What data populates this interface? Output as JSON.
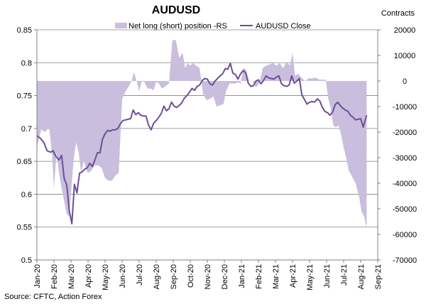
{
  "chart_data": {
    "type": "line",
    "title": "AUDUSD",
    "right_axis_title": "Contracts",
    "source": "Source: CFTC, Action Forex",
    "legend": {
      "placement": "top-center",
      "area_label": "Net long (short) position -RS",
      "line_label": "AUDUSD Close"
    },
    "colors": {
      "area": "#c9bedd",
      "line": "#6c4f96",
      "grid": "#808080",
      "axis": "#808080"
    },
    "x_start": "Jan-20",
    "x_end": "Sep-21",
    "x_tick_labels": [
      "Jan-20",
      "Feb-20",
      "Mar-20",
      "Apr-20",
      "May-20",
      "Jun-20",
      "Jul-20",
      "Aug-20",
      "Sep-20",
      "Oct-20",
      "Nov-20",
      "Dec-20",
      "Jan-21",
      "Feb-21",
      "Mar-21",
      "Apr-21",
      "May-21",
      "Jun-21",
      "Jul-21",
      "Aug-21",
      "Sep-21"
    ],
    "left_axis": {
      "range": [
        0.5,
        0.85
      ],
      "ticks": [
        0.85,
        0.8,
        0.75,
        0.7,
        0.65,
        0.6,
        0.55,
        0.5
      ]
    },
    "right_axis": {
      "range": [
        -70000,
        20000
      ],
      "ticks": [
        20000,
        10000,
        0,
        -10000,
        -20000,
        -30000,
        -40000,
        -50000,
        -60000,
        -70000
      ]
    },
    "series": [
      {
        "name": "Net long (short) position -RS",
        "type": "area",
        "axis": "right",
        "points": [
          [
            0.0,
            -26000
          ],
          [
            0.25,
            -19000
          ],
          [
            0.5,
            -20000
          ],
          [
            0.7,
            -18000
          ],
          [
            0.8,
            -23000
          ],
          [
            0.9,
            -30000
          ],
          [
            1.0,
            -42000
          ],
          [
            1.15,
            -28000
          ],
          [
            1.3,
            -36000
          ],
          [
            1.45,
            -42000
          ],
          [
            1.6,
            -47000
          ],
          [
            1.75,
            -52000
          ],
          [
            1.9,
            -53000
          ],
          [
            2.0,
            -44000
          ],
          [
            2.15,
            -31000
          ],
          [
            2.3,
            -24000
          ],
          [
            2.45,
            -28000
          ],
          [
            2.6,
            -36000
          ],
          [
            2.75,
            -31000
          ],
          [
            2.9,
            -35000
          ],
          [
            3.0,
            -36000
          ],
          [
            3.2,
            -35000
          ],
          [
            3.4,
            -33000
          ],
          [
            3.6,
            -33000
          ],
          [
            3.8,
            -34000
          ],
          [
            4.0,
            -38000
          ],
          [
            4.2,
            -39000
          ],
          [
            4.4,
            -39000
          ],
          [
            4.6,
            -37000
          ],
          [
            4.8,
            -36000
          ],
          [
            5.0,
            -7000
          ],
          [
            5.1,
            -5500
          ],
          [
            5.25,
            -3500
          ],
          [
            5.4,
            -2000
          ],
          [
            5.55,
            0
          ],
          [
            5.7,
            3500
          ],
          [
            5.85,
            0
          ],
          [
            6.0,
            -4000
          ],
          [
            6.15,
            -200
          ],
          [
            6.3,
            -300
          ],
          [
            6.5,
            -3000
          ],
          [
            6.7,
            -3000
          ],
          [
            6.85,
            -3700
          ],
          [
            7.0,
            -400
          ],
          [
            7.15,
            -1000
          ],
          [
            7.35,
            -3000
          ],
          [
            7.55,
            -2000
          ],
          [
            7.75,
            -1000
          ],
          [
            7.95,
            16000
          ],
          [
            8.15,
            16000
          ],
          [
            8.35,
            9000
          ],
          [
            8.55,
            11000
          ],
          [
            8.7,
            5000
          ],
          [
            8.85,
            7000
          ],
          [
            9.0,
            6000
          ],
          [
            9.15,
            7000
          ],
          [
            9.35,
            6000
          ],
          [
            9.55,
            5000
          ],
          [
            9.75,
            -5000
          ],
          [
            9.95,
            -7500
          ],
          [
            10.15,
            -7000
          ],
          [
            10.35,
            -6000
          ],
          [
            10.55,
            -10000
          ],
          [
            10.75,
            -9500
          ],
          [
            10.95,
            -9000
          ],
          [
            11.1,
            -4000
          ],
          [
            11.3,
            -1000
          ],
          [
            11.5,
            -1000
          ],
          [
            11.65,
            -1000
          ],
          [
            11.8,
            -500
          ],
          [
            11.95,
            -1000
          ],
          [
            12.1,
            5000
          ],
          [
            12.25,
            4700
          ],
          [
            12.45,
            0
          ],
          [
            12.65,
            100
          ],
          [
            12.85,
            -2500
          ],
          [
            13.05,
            -1000
          ],
          [
            13.25,
            5000
          ],
          [
            13.45,
            6000
          ],
          [
            13.65,
            6500
          ],
          [
            13.85,
            7000
          ],
          [
            14.05,
            6000
          ],
          [
            14.25,
            7000
          ],
          [
            14.45,
            5000
          ],
          [
            14.65,
            7500
          ],
          [
            14.85,
            6000
          ],
          [
            15.0,
            11000
          ],
          [
            15.15,
            2000
          ],
          [
            15.35,
            2800
          ],
          [
            15.55,
            1000
          ],
          [
            15.75,
            0
          ],
          [
            15.95,
            1000
          ],
          [
            16.15,
            1000
          ],
          [
            16.35,
            1300
          ],
          [
            16.6,
            500
          ],
          [
            16.8,
            500
          ],
          [
            16.95,
            500
          ],
          [
            17.1,
            -7000
          ],
          [
            17.25,
            -11000
          ],
          [
            17.4,
            -17500
          ],
          [
            17.55,
            -18000
          ],
          [
            17.7,
            -17500
          ],
          [
            17.85,
            -21000
          ],
          [
            18.0,
            -26000
          ],
          [
            18.15,
            -30000
          ],
          [
            18.3,
            -35000
          ],
          [
            18.5,
            -37500
          ],
          [
            18.7,
            -40000
          ],
          [
            18.9,
            -45000
          ],
          [
            19.05,
            -51000
          ],
          [
            19.2,
            -53000
          ],
          [
            19.35,
            -57500
          ]
        ]
      },
      {
        "name": "AUDUSD Close",
        "type": "line",
        "axis": "left",
        "points": [
          [
            0.0,
            0.689
          ],
          [
            0.2,
            0.685
          ],
          [
            0.4,
            0.679
          ],
          [
            0.6,
            0.666
          ],
          [
            0.8,
            0.664
          ],
          [
            0.95,
            0.666
          ],
          [
            1.1,
            0.658
          ],
          [
            1.3,
            0.652
          ],
          [
            1.45,
            0.659
          ],
          [
            1.6,
            0.624
          ],
          [
            1.75,
            0.614
          ],
          [
            1.9,
            0.575
          ],
          [
            2.05,
            0.555
          ],
          [
            2.2,
            0.615
          ],
          [
            2.35,
            0.602
          ],
          [
            2.5,
            0.632
          ],
          [
            2.65,
            0.634
          ],
          [
            2.8,
            0.638
          ],
          [
            2.95,
            0.64
          ],
          [
            3.1,
            0.647
          ],
          [
            3.25,
            0.642
          ],
          [
            3.4,
            0.652
          ],
          [
            3.55,
            0.663
          ],
          [
            3.7,
            0.663
          ],
          [
            3.85,
            0.684
          ],
          [
            4.0,
            0.692
          ],
          [
            4.15,
            0.697
          ],
          [
            4.3,
            0.696
          ],
          [
            4.45,
            0.698
          ],
          [
            4.6,
            0.698
          ],
          [
            4.75,
            0.7
          ],
          [
            4.9,
            0.707
          ],
          [
            5.05,
            0.712
          ],
          [
            5.2,
            0.713
          ],
          [
            5.35,
            0.714
          ],
          [
            5.5,
            0.715
          ],
          [
            5.65,
            0.728
          ],
          [
            5.8,
            0.721
          ],
          [
            5.95,
            0.724
          ],
          [
            6.1,
            0.72
          ],
          [
            6.25,
            0.719
          ],
          [
            6.4,
            0.719
          ],
          [
            6.55,
            0.705
          ],
          [
            6.7,
            0.698
          ],
          [
            6.85,
            0.708
          ],
          [
            7.0,
            0.712
          ],
          [
            7.15,
            0.717
          ],
          [
            7.3,
            0.723
          ],
          [
            7.45,
            0.734
          ],
          [
            7.6,
            0.727
          ],
          [
            7.75,
            0.73
          ],
          [
            7.9,
            0.74
          ],
          [
            8.05,
            0.734
          ],
          [
            8.2,
            0.732
          ],
          [
            8.35,
            0.735
          ],
          [
            8.5,
            0.739
          ],
          [
            8.65,
            0.746
          ],
          [
            8.8,
            0.75
          ],
          [
            8.95,
            0.755
          ],
          [
            9.1,
            0.761
          ],
          [
            9.25,
            0.758
          ],
          [
            9.4,
            0.764
          ],
          [
            9.55,
            0.766
          ],
          [
            9.7,
            0.773
          ],
          [
            9.85,
            0.776
          ],
          [
            10.0,
            0.775
          ],
          [
            10.15,
            0.768
          ],
          [
            10.3,
            0.766
          ],
          [
            10.45,
            0.772
          ],
          [
            10.6,
            0.776
          ],
          [
            10.75,
            0.78
          ],
          [
            10.9,
            0.783
          ],
          [
            11.05,
            0.791
          ],
          [
            11.2,
            0.79
          ],
          [
            11.35,
            0.799
          ],
          [
            11.5,
            0.784
          ],
          [
            11.65,
            0.782
          ],
          [
            11.8,
            0.775
          ],
          [
            11.95,
            0.783
          ],
          [
            12.1,
            0.788
          ],
          [
            12.25,
            0.785
          ],
          [
            12.4,
            0.769
          ],
          [
            12.55,
            0.764
          ],
          [
            12.7,
            0.765
          ],
          [
            12.85,
            0.772
          ],
          [
            13.0,
            0.774
          ],
          [
            13.15,
            0.768
          ],
          [
            13.3,
            0.773
          ],
          [
            13.45,
            0.78
          ],
          [
            13.6,
            0.777
          ],
          [
            13.75,
            0.776
          ],
          [
            13.9,
            0.775
          ],
          [
            14.05,
            0.778
          ],
          [
            14.2,
            0.78
          ],
          [
            14.35,
            0.768
          ],
          [
            14.5,
            0.765
          ],
          [
            14.65,
            0.764
          ],
          [
            14.8,
            0.766
          ],
          [
            14.95,
            0.78
          ],
          [
            15.1,
            0.769
          ],
          [
            15.25,
            0.772
          ],
          [
            15.4,
            0.776
          ],
          [
            15.55,
            0.751
          ],
          [
            15.7,
            0.744
          ],
          [
            15.85,
            0.737
          ],
          [
            16.0,
            0.74
          ],
          [
            16.15,
            0.741
          ],
          [
            16.3,
            0.74
          ],
          [
            16.45,
            0.745
          ],
          [
            16.6,
            0.742
          ],
          [
            16.75,
            0.732
          ],
          [
            16.9,
            0.726
          ],
          [
            17.05,
            0.724
          ],
          [
            17.2,
            0.72
          ],
          [
            17.35,
            0.725
          ],
          [
            17.5,
            0.736
          ],
          [
            17.65,
            0.74
          ],
          [
            17.8,
            0.735
          ],
          [
            17.95,
            0.731
          ],
          [
            18.1,
            0.728
          ],
          [
            18.25,
            0.726
          ],
          [
            18.4,
            0.72
          ],
          [
            18.55,
            0.717
          ],
          [
            18.7,
            0.713
          ],
          [
            18.85,
            0.714
          ],
          [
            19.0,
            0.715
          ],
          [
            19.15,
            0.702
          ],
          [
            19.35,
            0.72
          ]
        ]
      }
    ]
  }
}
